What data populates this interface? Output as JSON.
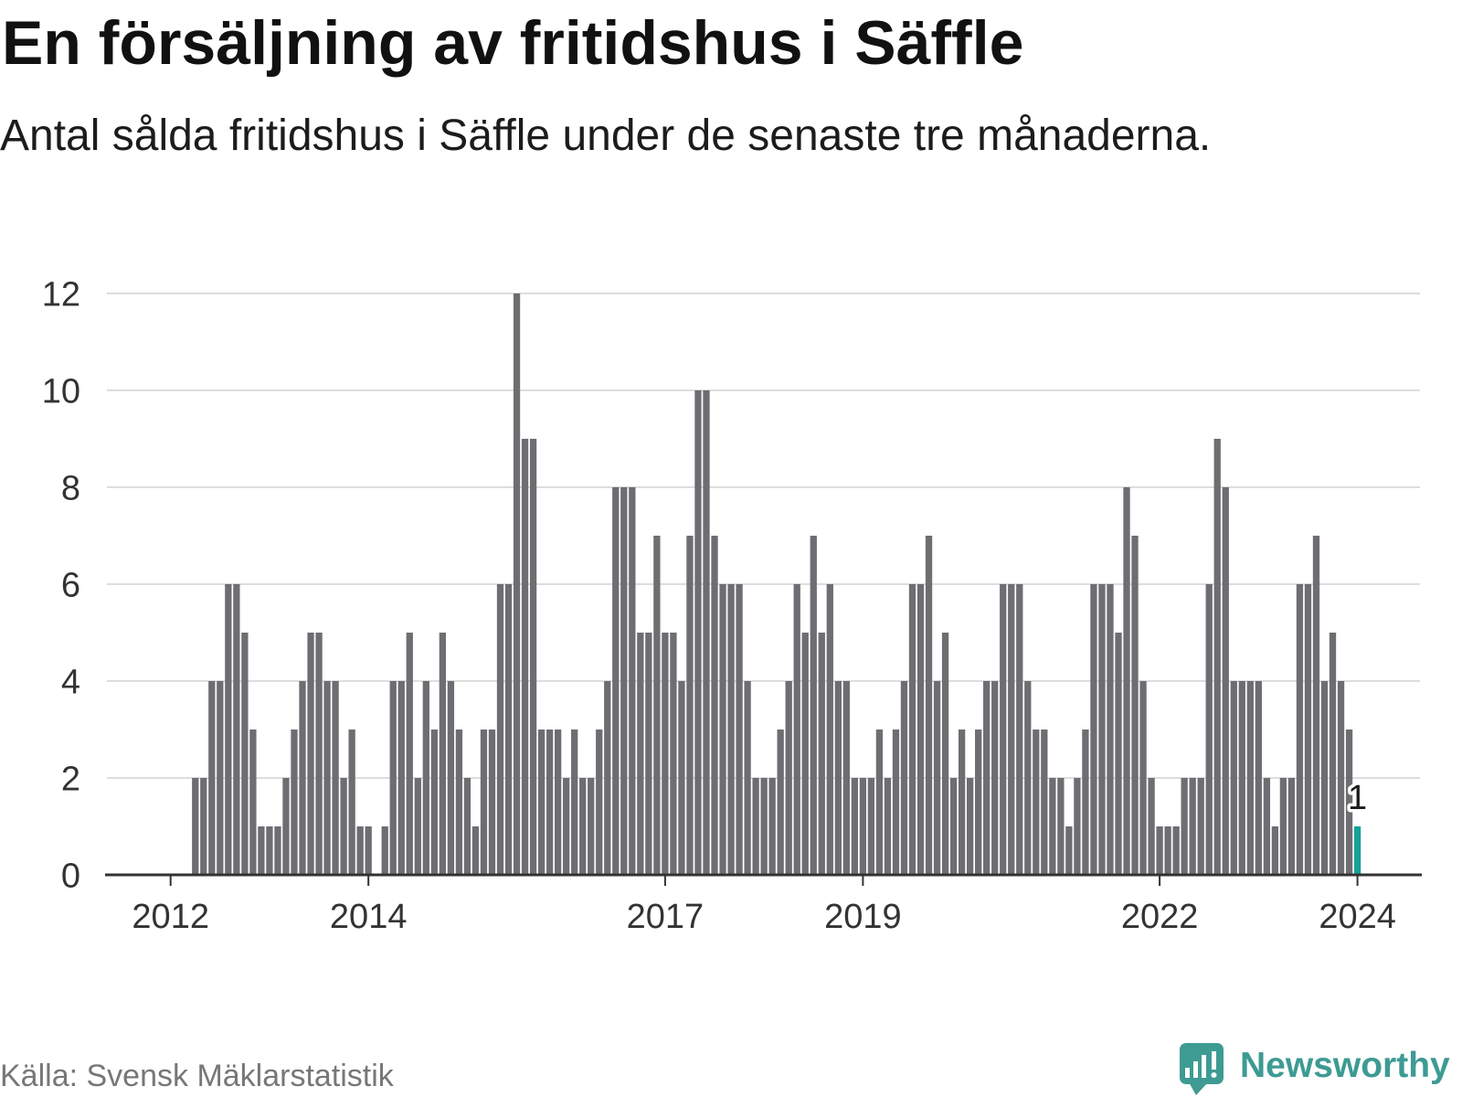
{
  "chart_data": {
    "type": "bar",
    "title": "En försäljning av fritidshus i Säffle",
    "subtitle": "Antal sålda fritidshus i Säffle under de senaste tre månaderna.",
    "start": {
      "year": 2012,
      "month": 4
    },
    "values": [
      2,
      2,
      4,
      4,
      6,
      6,
      5,
      3,
      1,
      1,
      1,
      2,
      3,
      4,
      5,
      5,
      4,
      4,
      2,
      3,
      1,
      1,
      0,
      1,
      4,
      4,
      5,
      2,
      4,
      3,
      5,
      4,
      3,
      2,
      1,
      3,
      3,
      6,
      6,
      12,
      9,
      9,
      3,
      3,
      3,
      2,
      3,
      2,
      2,
      3,
      4,
      8,
      8,
      8,
      5,
      5,
      7,
      5,
      5,
      4,
      7,
      10,
      10,
      7,
      6,
      6,
      6,
      4,
      2,
      2,
      2,
      3,
      4,
      6,
      5,
      7,
      5,
      6,
      4,
      4,
      2,
      2,
      2,
      3,
      2,
      3,
      4,
      6,
      6,
      7,
      4,
      5,
      2,
      3,
      2,
      3,
      4,
      4,
      6,
      6,
      6,
      4,
      3,
      3,
      2,
      2,
      1,
      2,
      3,
      6,
      6,
      6,
      5,
      8,
      7,
      4,
      2,
      1,
      1,
      1,
      2,
      2,
      2,
      6,
      9,
      8,
      4,
      4,
      4,
      4,
      2,
      1,
      2,
      2,
      6,
      6,
      7,
      4,
      5,
      4,
      3,
      1
    ],
    "xticks": [
      2012,
      2014,
      2017,
      2019,
      2022,
      2024
    ],
    "yticks": [
      0,
      2,
      4,
      6,
      8,
      10,
      12
    ],
    "ylim": [
      0,
      12
    ],
    "grid": true,
    "highlight_last": true
  },
  "footer": {
    "source": "Källa: Svensk Mäklarstatistik",
    "brand": "Newsworthy"
  },
  "icons": {
    "brand_logo": "newsworthy-logo-icon"
  },
  "colors": {
    "bar": "#6e6e72",
    "highlight": "#17a297",
    "grid": "#dddddd",
    "axis": "#333333",
    "brand": "#3d9b93"
  }
}
